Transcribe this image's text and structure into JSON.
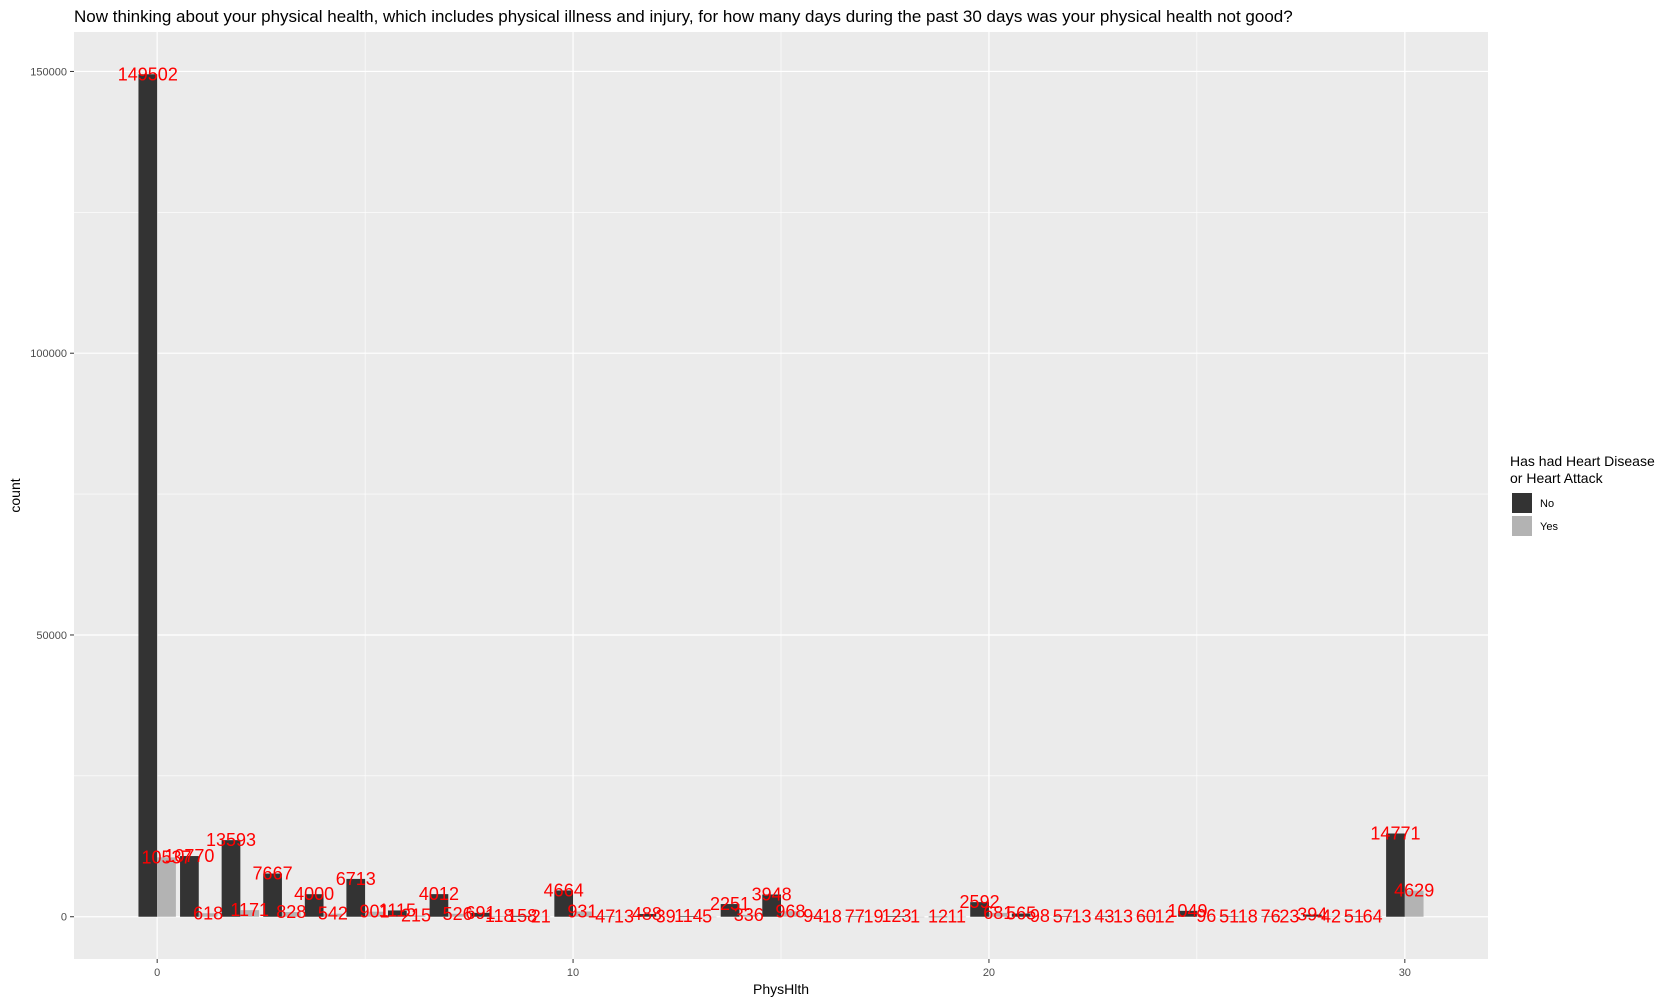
{
  "chart_data": {
    "type": "bar",
    "title": "Now thinking about your physical health, which includes physical illness and injury, for how many days during the past 30 days was your physical health not good?",
    "xlabel": "PhysHlth",
    "ylabel": "count",
    "x_ticks": [
      0,
      10,
      20,
      30
    ],
    "y_ticks": [
      0,
      50000,
      100000,
      150000
    ],
    "xlim": [
      -2,
      32
    ],
    "ylim": [
      -7500,
      157000
    ],
    "grid": true,
    "legend": {
      "title_lines": [
        "Has had Heart Disease",
        "or Heart Attack"
      ],
      "position": "right"
    },
    "x": [
      0,
      1,
      2,
      3,
      4,
      5,
      6,
      7,
      8,
      9,
      10,
      11,
      12,
      13,
      14,
      15,
      16,
      17,
      18,
      19,
      20,
      21,
      22,
      23,
      24,
      25,
      26,
      27,
      28,
      29,
      30
    ],
    "series": [
      {
        "name": "No",
        "color": "#333333",
        "values": [
          149502,
          10770,
          13593,
          7667,
          4000,
          6713,
          1115,
          4012,
          691,
          158,
          4664,
          47,
          488,
          114,
          2251,
          3948,
          94,
          77,
          123,
          12,
          2592,
          565,
          57,
          43,
          60,
          1049,
          51,
          76,
          394,
          51,
          14771
        ],
        "labels": [
          "149502",
          "10770",
          "13593",
          "7667",
          "4000",
          "6713",
          "1115",
          "4012",
          "691",
          "158",
          "4664",
          "47",
          "488",
          "114",
          "2251",
          "3948",
          "94",
          "77",
          "123",
          "12",
          "2592",
          "565",
          "57",
          "43",
          "60",
          "1049",
          "51",
          "76",
          "394",
          "51",
          "14771"
        ]
      },
      {
        "name": "Yes",
        "color": "#b3b3b3",
        "values": [
          10537,
          618,
          1171,
          828,
          542,
          901,
          215,
          526,
          118,
          21,
          931,
          13,
          39,
          5,
          336,
          968,
          18,
          19,
          1,
          11,
          681,
          98,
          13,
          13,
          12,
          96,
          18,
          23,
          42,
          64,
          4629
        ],
        "labels": [
          "10537",
          "618",
          "1171",
          "828",
          "542",
          "901",
          "215",
          "526",
          "118",
          "21",
          "931",
          "13",
          "39",
          "5",
          "336",
          "968",
          "18",
          "19",
          "1",
          "11",
          "681",
          "98",
          "13",
          "13",
          "12",
          "96",
          "18",
          "23",
          "42",
          "64",
          "4629"
        ]
      }
    ]
  }
}
